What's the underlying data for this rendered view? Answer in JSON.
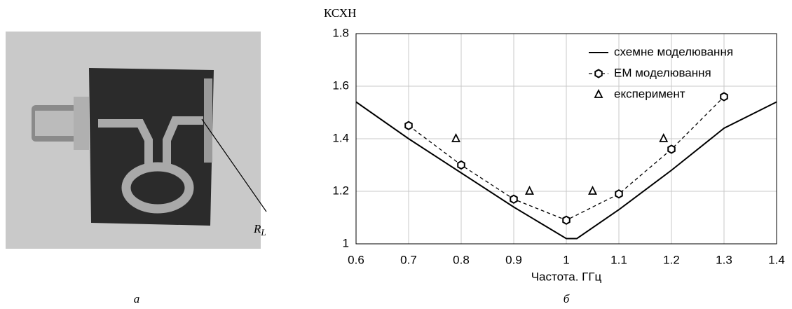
{
  "chart_data": {
    "type": "line",
    "y_label": "КСХН",
    "x_label": "Частота. ГГц",
    "xlim": [
      0.6,
      1.4
    ],
    "xticks": [
      0.6,
      0.7,
      0.8,
      0.9,
      1,
      1.1,
      1.2,
      1.3,
      1.4
    ],
    "ylim": [
      1,
      1.8
    ],
    "yticks": [
      1,
      1.2,
      1.4,
      1.6,
      1.8
    ],
    "grid": true,
    "legend": "upper right",
    "series": [
      {
        "name": "схемне моделювання",
        "color": "#000000",
        "linestyle": "solid",
        "marker": "none",
        "x": [
          0.6,
          0.7,
          0.8,
          0.9,
          0.95,
          1.0,
          1.02,
          1.1,
          1.2,
          1.3,
          1.4
        ],
        "values": [
          1.54,
          1.4,
          1.27,
          1.14,
          1.08,
          1.02,
          1.02,
          1.13,
          1.28,
          1.44,
          1.54
        ]
      },
      {
        "name": "ЕМ моделювання",
        "color": "#000000",
        "linestyle": "dashed",
        "marker": "hexagon",
        "x": [
          0.7,
          0.8,
          0.9,
          1.0,
          1.1,
          1.2,
          1.3
        ],
        "values": [
          1.45,
          1.3,
          1.17,
          1.09,
          1.19,
          1.36,
          1.56
        ]
      },
      {
        "name": "експеримент",
        "color": "#000000",
        "linestyle": "none",
        "marker": "triangle",
        "x": [
          0.79,
          0.93,
          1.05,
          1.185
        ],
        "values": [
          1.4,
          1.2,
          1.2,
          1.4
        ]
      }
    ]
  },
  "panel_labels": [
    "а",
    "б"
  ],
  "photo": {
    "label_main": "R",
    "label_sub": "L"
  }
}
